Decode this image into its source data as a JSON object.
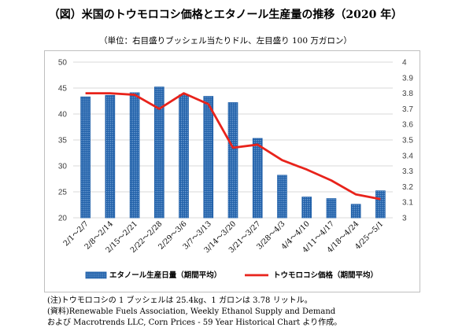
{
  "title": "（図）米国のトウモロコシ価格とエタノール生産量の推移（2020 年）",
  "subtitle": "（単位：右目盛りブッシェル当たりドル、左目盛り 100 万ガロン）",
  "chart_data": {
    "type": "bar",
    "categories": [
      "2/1～2/7",
      "2/8～2/14",
      "2/15～2/21",
      "2/22～2/28",
      "2/29～3/6",
      "3/7～3/13",
      "3/14～3/20",
      "3/21～3/27",
      "3/28～4/3",
      "4/4～4/10",
      "4/11～4/17",
      "4/18～4/24",
      "4/25～5/1"
    ],
    "series": [
      {
        "name": "エタノール生産日量（期間平均）",
        "type": "bar",
        "axis": "left",
        "values": [
          43.3,
          43.6,
          44.1,
          45.2,
          43.7,
          43.4,
          42.2,
          35.3,
          28.2,
          24.0,
          23.7,
          22.6,
          25.2
        ]
      },
      {
        "name": "トウモロコシ価格（期間平均）",
        "type": "line",
        "axis": "right",
        "values": [
          3.8,
          3.8,
          3.79,
          3.7,
          3.8,
          3.73,
          3.45,
          3.47,
          3.37,
          3.31,
          3.24,
          3.15,
          3.12
        ]
      }
    ],
    "y_left": {
      "min": 20,
      "max": 50,
      "step": 5,
      "ticks": [
        "20",
        "25",
        "30",
        "35",
        "40",
        "45",
        "50"
      ]
    },
    "y_right": {
      "min": 3,
      "max": 4,
      "step": 0.1,
      "ticks": [
        "3",
        "3.1",
        "3.2",
        "3.3",
        "3.4",
        "3.5",
        "3.6",
        "3.7",
        "3.8",
        "3.9",
        "4"
      ]
    },
    "grid": true,
    "legend_position": "bottom",
    "colors": {
      "bar": "#1f5fa8",
      "bar_dots": "#9ec3ea",
      "line": "#e8231b",
      "grid": "#d9d9d9",
      "axis_text": "#404040"
    }
  },
  "notes": [
    "(注)トウモロコシの 1 ブッシェルは 25.4kg、1 ガロンは 3.78 リットル。",
    "(資料)Renewable Fuels Association, Weekly Ethanol Supply and Demand",
    "および Macrotrends LLC, Corn Prices - 59 Year Historical Chart より作成。"
  ]
}
